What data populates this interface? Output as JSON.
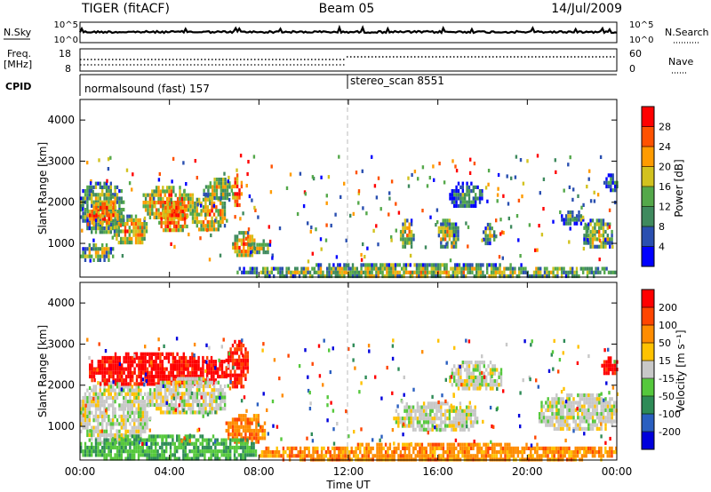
{
  "header": {
    "station": "TIGER (fitACF)",
    "beam": "Beam 05",
    "date": "14/Jul/2009"
  },
  "top_panels": {
    "nsky_label": "N.Sky",
    "nsky_ticks": [
      "10^5",
      "10^0"
    ],
    "nsearch_label": "N.Search",
    "nsearch_ticks": [
      "10^5",
      "10^0"
    ],
    "freq_label": "Freq.",
    "freq_unit": "[MHz]",
    "freq_ticks": [
      "18",
      "8"
    ],
    "nave_label": "Nave",
    "nave_ticks": [
      "60",
      "0"
    ],
    "cpid_label": "CPID",
    "cpid_segments": [
      {
        "label": "normalsound (fast) 157",
        "start_hour": 0,
        "end_hour": 12
      },
      {
        "label": "stereo_scan 8551",
        "start_hour": 12,
        "end_hour": 24
      }
    ]
  },
  "x_axis": {
    "title": "Time UT",
    "ticks": [
      "00:00",
      "04:00",
      "08:00",
      "12:00",
      "16:00",
      "20:00",
      "00:00"
    ],
    "tick_hours": [
      0,
      4,
      8,
      12,
      16,
      20,
      24
    ],
    "range_hours": [
      0,
      24
    ]
  },
  "chart_data": [
    {
      "type": "heatmap",
      "parameter": "Power",
      "ylabel": "Slant Range [km]",
      "ylim": [
        180,
        4500
      ],
      "yticks": [
        1000,
        2000,
        3000,
        4000
      ],
      "colorbar": {
        "label": "Power [dB]",
        "ticks": [
          4,
          8,
          12,
          16,
          20,
          24,
          28
        ],
        "colors": [
          "#0000ff",
          "#2a4fb0",
          "#3f8a5e",
          "#54a84a",
          "#d2c21e",
          "#ff9b00",
          "#ff5200",
          "#ff0000"
        ]
      },
      "blobs": [
        {
          "t": [
            0.0,
            2.0
          ],
          "r": [
            1300,
            2500
          ],
          "level": 0.55
        },
        {
          "t": [
            0.3,
            1.8
          ],
          "r": [
            1500,
            2000
          ],
          "level": 0.85
        },
        {
          "t": [
            1.5,
            3.0
          ],
          "r": [
            1000,
            1700
          ],
          "level": 0.7
        },
        {
          "t": [
            2.8,
            5.0
          ],
          "r": [
            1600,
            2400
          ],
          "level": 0.75
        },
        {
          "t": [
            3.5,
            4.8
          ],
          "r": [
            1300,
            2000
          ],
          "level": 0.85
        },
        {
          "t": [
            5.0,
            6.5
          ],
          "r": [
            1300,
            2200
          ],
          "level": 0.7
        },
        {
          "t": [
            5.5,
            6.8
          ],
          "r": [
            2100,
            2600
          ],
          "level": 0.6
        },
        {
          "t": [
            6.8,
            7.2
          ],
          "r": [
            1900,
            2700
          ],
          "level": 0.9
        },
        {
          "t": [
            6.8,
            7.8
          ],
          "r": [
            700,
            1300
          ],
          "level": 0.75
        },
        {
          "t": [
            7.5,
            8.5
          ],
          "r": [
            800,
            1100
          ],
          "level": 0.55
        },
        {
          "t": [
            0.0,
            1.5
          ],
          "r": [
            600,
            1000
          ],
          "level": 0.55
        },
        {
          "t": [
            14.3,
            14.9
          ],
          "r": [
            900,
            1600
          ],
          "level": 0.6
        },
        {
          "t": [
            16.0,
            16.9
          ],
          "r": [
            900,
            1600
          ],
          "level": 0.6
        },
        {
          "t": [
            18.0,
            18.5
          ],
          "r": [
            1000,
            1500
          ],
          "level": 0.5
        },
        {
          "t": [
            16.5,
            18.0
          ],
          "r": [
            1900,
            2500
          ],
          "level": 0.35
        },
        {
          "t": [
            21.5,
            22.5
          ],
          "r": [
            1500,
            1800
          ],
          "level": 0.45
        },
        {
          "t": [
            22.5,
            23.8
          ],
          "r": [
            900,
            1600
          ],
          "level": 0.55
        },
        {
          "t": [
            23.4,
            24.0
          ],
          "r": [
            2300,
            2700
          ],
          "level": 0.35
        },
        {
          "t": [
            7.0,
            24.0
          ],
          "r": [
            190,
            520
          ],
          "level": 0.55
        }
      ]
    },
    {
      "type": "heatmap",
      "parameter": "Velocity",
      "ylabel": "Slant Range [km]",
      "ylim": [
        180,
        4500
      ],
      "yticks": [
        1000,
        2000,
        3000,
        4000
      ],
      "colorbar": {
        "label": "Velocity [m s⁻¹]",
        "ticks": [
          200,
          100,
          50,
          15,
          -15,
          -50,
          -100,
          -200
        ],
        "colors": [
          "#0000dc",
          "#2a5fc0",
          "#2e8b57",
          "#55c83c",
          "#c8c8c8",
          "#ffc200",
          "#ff8c00",
          "#ff4500",
          "#ff0000"
        ]
      },
      "blobs": [
        {
          "t": [
            0.0,
            3.0
          ],
          "r": [
            600,
            2100
          ],
          "level": 0.5
        },
        {
          "t": [
            0.3,
            6.5
          ],
          "r": [
            2000,
            2800
          ],
          "level": 0.95
        },
        {
          "t": [
            3.0,
            6.5
          ],
          "r": [
            1300,
            2200
          ],
          "level": 0.5
        },
        {
          "t": [
            6.5,
            7.5
          ],
          "r": [
            2000,
            3100
          ],
          "level": 0.9
        },
        {
          "t": [
            6.5,
            8.3
          ],
          "r": [
            600,
            1300
          ],
          "level": 0.75
        },
        {
          "t": [
            0.0,
            8.0
          ],
          "r": [
            180,
            800
          ],
          "level": 0.35
        },
        {
          "t": [
            8.0,
            24.0
          ],
          "r": [
            180,
            600
          ],
          "level": 0.72
        },
        {
          "t": [
            14.0,
            17.8
          ],
          "r": [
            900,
            1600
          ],
          "level": 0.5
        },
        {
          "t": [
            16.5,
            18.8
          ],
          "r": [
            1900,
            2600
          ],
          "level": 0.5
        },
        {
          "t": [
            20.5,
            24.0
          ],
          "r": [
            900,
            1800
          ],
          "level": 0.5
        },
        {
          "t": [
            23.3,
            24.0
          ],
          "r": [
            2300,
            2700
          ],
          "level": 0.95
        }
      ]
    }
  ],
  "colors": {
    "dashed_marker": "#bbbbbb"
  }
}
